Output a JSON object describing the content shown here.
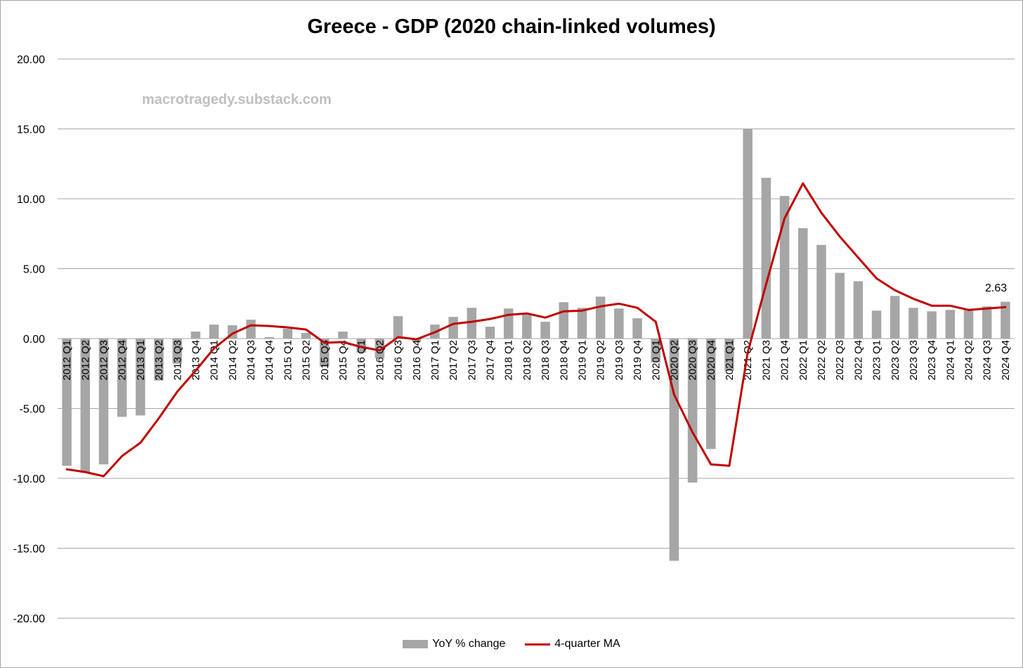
{
  "chart_data": {
    "type": "bar",
    "title": "Greece - GDP (2020 chain-linked volumes)",
    "watermark": "macrotragedy.substack.com",
    "ylim": [
      -20,
      20
    ],
    "yticks": [
      "20.00",
      "15.00",
      "10.00",
      "5.00",
      "0.00",
      "-5.00",
      "-10.00",
      "-15.00",
      "-20.00"
    ],
    "grid": true,
    "legend_position": "bottom",
    "categories": [
      "2012 Q1",
      "2012 Q2",
      "2012 Q3",
      "2012 Q4",
      "2013 Q1",
      "2013 Q2",
      "2013 Q3",
      "2013 Q4",
      "2014 Q1",
      "2014 Q2",
      "2014 Q3",
      "2014 Q4",
      "2015 Q1",
      "2015 Q2",
      "2015 Q3",
      "2015 Q4",
      "2016 Q1",
      "2016 Q2",
      "2016 Q3",
      "2016 Q4",
      "2017 Q1",
      "2017 Q2",
      "2017 Q3",
      "2017 Q4",
      "2018 Q1",
      "2018 Q2",
      "2018 Q3",
      "2018 Q4",
      "2019 Q1",
      "2019 Q2",
      "2019 Q3",
      "2019 Q4",
      "2020 Q1",
      "2020 Q2",
      "2020 Q3",
      "2020 Q4",
      "2021 Q1",
      "2021 Q2",
      "2021 Q3",
      "2021 Q4",
      "2022 Q1",
      "2022 Q2",
      "2022 Q3",
      "2022 Q4",
      "2023 Q1",
      "2023 Q2",
      "2023 Q3",
      "2023 Q4",
      "2024 Q1",
      "2024 Q2",
      "2024 Q3",
      "2024 Q4"
    ],
    "series": [
      {
        "name": "YoY % change",
        "type": "bar",
        "color": "#a6a6a6",
        "values": [
          -9.1,
          -9.6,
          -9.0,
          -5.6,
          -5.5,
          -3.0,
          -1.8,
          0.5,
          1.0,
          0.95,
          1.35,
          0.1,
          0.7,
          0.4,
          -2.0,
          0.5,
          -1.0,
          -1.4,
          1.6,
          -0.2,
          1.0,
          1.55,
          2.2,
          0.85,
          2.15,
          1.8,
          1.2,
          2.6,
          2.2,
          3.0,
          2.15,
          1.45,
          -1.7,
          -15.9,
          -10.3,
          -7.9,
          -2.3,
          15.0,
          11.5,
          10.2,
          7.9,
          6.7,
          4.7,
          4.1,
          2.0,
          3.05,
          2.2,
          1.95,
          2.05,
          2.1,
          2.3,
          2.63
        ]
      },
      {
        "name": "4-quarter MA",
        "type": "line",
        "color": "#c00000",
        "values": [
          -9.35,
          -9.55,
          -9.85,
          -8.4,
          -7.45,
          -5.7,
          -3.8,
          -2.3,
          -0.7,
          0.35,
          0.95,
          0.9,
          0.8,
          0.65,
          -0.3,
          -0.25,
          -0.6,
          -0.85,
          0.1,
          -0.05,
          0.45,
          1.05,
          1.2,
          1.4,
          1.7,
          1.8,
          1.5,
          1.95,
          2.0,
          2.3,
          2.5,
          2.2,
          1.2,
          -4.0,
          -6.7,
          -9.0,
          -9.1,
          -1.0,
          3.9,
          8.6,
          11.1,
          9.0,
          7.3,
          5.8,
          4.3,
          3.45,
          2.85,
          2.35,
          2.35,
          2.05,
          2.15,
          2.25
        ]
      }
    ],
    "annotation": "2.63"
  }
}
